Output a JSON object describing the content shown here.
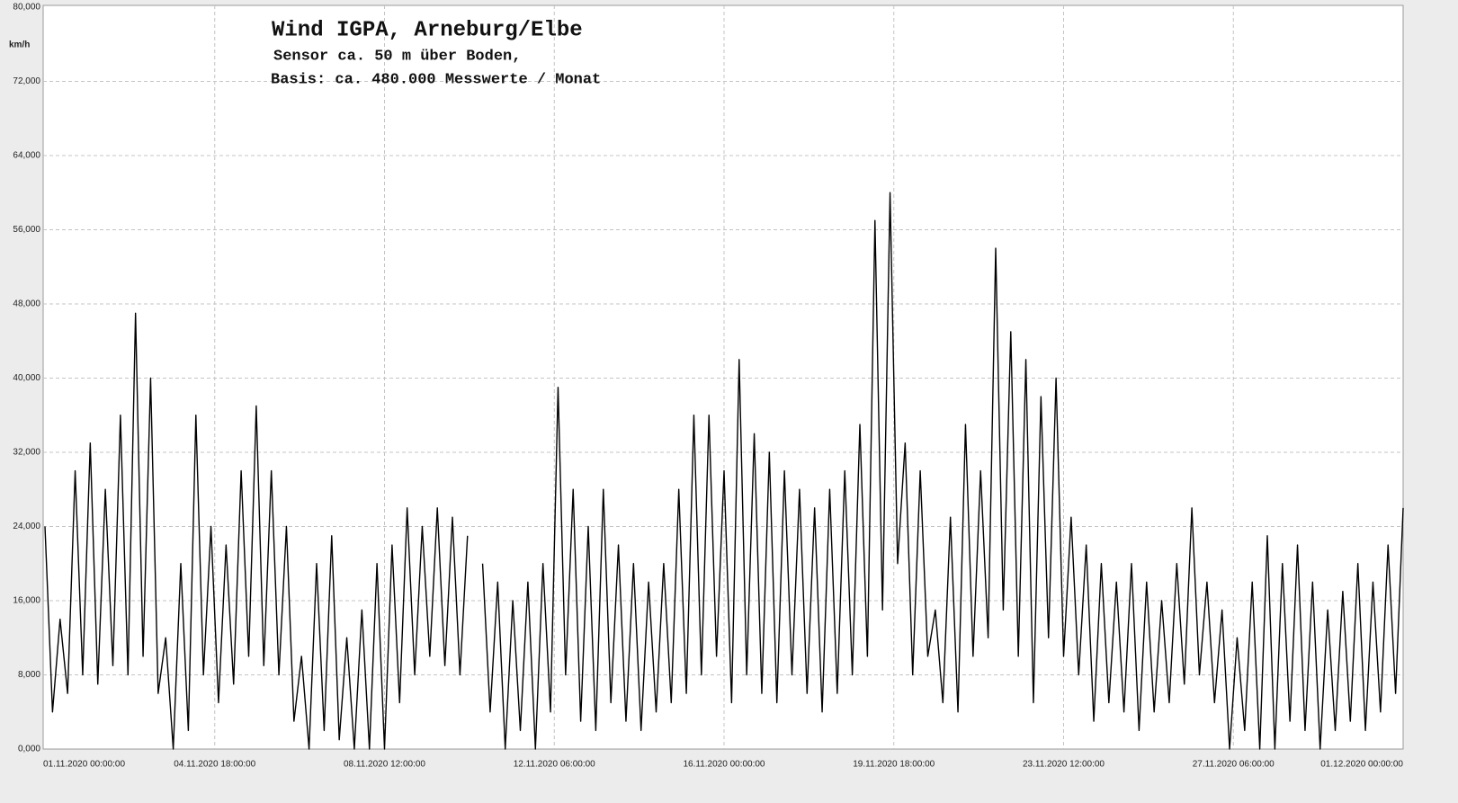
{
  "chart_data": {
    "type": "line",
    "title": "Wind  IGPA, Arneburg/Elbe",
    "subtitle": [
      "Sensor ca. 50 m über Boden,",
      "Basis: ca. 480.000 Messwerte / Monat"
    ],
    "y_label": "km/h",
    "grid": true,
    "ylim": [
      0,
      80
    ],
    "yticks": [
      {
        "value": 0,
        "label": "0,000"
      },
      {
        "value": 8,
        "label": "8,000"
      },
      {
        "value": 16,
        "label": "16,000"
      },
      {
        "value": 24,
        "label": "24,000"
      },
      {
        "value": 32,
        "label": "32,000"
      },
      {
        "value": 40,
        "label": "40,000"
      },
      {
        "value": 48,
        "label": "48,000"
      },
      {
        "value": 56,
        "label": "56,000"
      },
      {
        "value": 64,
        "label": "64,000"
      },
      {
        "value": 72,
        "label": "72,000"
      },
      {
        "value": 80,
        "label": "80,000"
      }
    ],
    "xlim": [
      "01.11.2020 00:00:00",
      "01.12.2020 00:00:00"
    ],
    "xticks": [
      "01.11.2020  00:00:00",
      "04.11.2020  18:00:00",
      "08.11.2020  12:00:00",
      "12.11.2020  06:00:00",
      "16.11.2020  00:00:00",
      "19.11.2020  18:00:00",
      "23.11.2020  12:00:00",
      "27.11.2020  06:00:00",
      "01.12.2020  00:00:00"
    ],
    "series": [
      {
        "color": "#000000",
        "x": [
          "01.11.2020 00:00:00",
          "01.11.2020 04:00:00",
          "01.11.2020 08:00:00",
          "01.11.2020 12:00:00",
          "01.11.2020 16:00:00",
          "01.11.2020 20:00:00",
          "02.11.2020 00:00:00",
          "02.11.2020 04:00:00",
          "02.11.2020 08:00:00",
          "02.11.2020 12:00:00",
          "02.11.2020 16:00:00",
          "02.11.2020 20:00:00",
          "03.11.2020 00:00:00",
          "03.11.2020 04:00:00",
          "03.11.2020 08:00:00",
          "03.11.2020 12:00:00",
          "03.11.2020 16:00:00",
          "03.11.2020 20:00:00",
          "04.11.2020 00:00:00",
          "04.11.2020 04:00:00",
          "04.11.2020 08:00:00",
          "04.11.2020 12:00:00",
          "04.11.2020 16:00:00",
          "04.11.2020 20:00:00",
          "05.11.2020 00:00:00",
          "05.11.2020 04:00:00",
          "05.11.2020 08:00:00",
          "05.11.2020 12:00:00",
          "05.11.2020 16:00:00",
          "05.11.2020 20:00:00",
          "06.11.2020 00:00:00",
          "06.11.2020 04:00:00",
          "06.11.2020 08:00:00",
          "06.11.2020 12:00:00",
          "06.11.2020 16:00:00",
          "06.11.2020 20:00:00",
          "07.11.2020 00:00:00",
          "07.11.2020 04:00:00",
          "07.11.2020 08:00:00",
          "07.11.2020 12:00:00",
          "07.11.2020 16:00:00",
          "07.11.2020 20:00:00",
          "08.11.2020 00:00:00",
          "08.11.2020 04:00:00",
          "08.11.2020 08:00:00",
          "08.11.2020 12:00:00",
          "08.11.2020 16:00:00",
          "08.11.2020 20:00:00",
          "09.11.2020 00:00:00",
          "09.11.2020 04:00:00",
          "09.11.2020 08:00:00",
          "09.11.2020 12:00:00",
          "09.11.2020 16:00:00",
          "09.11.2020 20:00:00",
          "10.11.2020 00:00:00",
          "10.11.2020 04:00:00",
          "10.11.2020 08:00:00",
          "10.11.2020 12:00:00",
          "10.11.2020 16:00:00",
          "10.11.2020 20:00:00",
          "11.11.2020 00:00:00",
          "11.11.2020 04:00:00",
          "11.11.2020 08:00:00",
          "11.11.2020 12:00:00",
          "11.11.2020 16:00:00",
          "11.11.2020 20:00:00",
          "12.11.2020 00:00:00",
          "12.11.2020 04:00:00",
          "12.11.2020 08:00:00",
          "12.11.2020 12:00:00",
          "12.11.2020 16:00:00",
          "12.11.2020 20:00:00",
          "13.11.2020 00:00:00",
          "13.11.2020 04:00:00",
          "13.11.2020 08:00:00",
          "13.11.2020 12:00:00",
          "13.11.2020 16:00:00",
          "13.11.2020 20:00:00",
          "14.11.2020 00:00:00",
          "14.11.2020 04:00:00",
          "14.11.2020 08:00:00",
          "14.11.2020 12:00:00",
          "14.11.2020 16:00:00",
          "14.11.2020 20:00:00",
          "15.11.2020 00:00:00",
          "15.11.2020 04:00:00",
          "15.11.2020 08:00:00",
          "15.11.2020 12:00:00",
          "15.11.2020 16:00:00",
          "15.11.2020 20:00:00",
          "16.11.2020 00:00:00",
          "16.11.2020 04:00:00",
          "16.11.2020 08:00:00",
          "16.11.2020 12:00:00",
          "16.11.2020 16:00:00",
          "16.11.2020 20:00:00",
          "17.11.2020 00:00:00",
          "17.11.2020 04:00:00",
          "17.11.2020 08:00:00",
          "17.11.2020 12:00:00",
          "17.11.2020 16:00:00",
          "17.11.2020 20:00:00",
          "18.11.2020 00:00:00",
          "18.11.2020 04:00:00",
          "18.11.2020 08:00:00",
          "18.11.2020 12:00:00",
          "18.11.2020 16:00:00",
          "18.11.2020 20:00:00",
          "19.11.2020 00:00:00",
          "19.11.2020 04:00:00",
          "19.11.2020 08:00:00",
          "19.11.2020 12:00:00",
          "19.11.2020 16:00:00",
          "19.11.2020 20:00:00",
          "20.11.2020 00:00:00",
          "20.11.2020 04:00:00",
          "20.11.2020 08:00:00",
          "20.11.2020 12:00:00",
          "20.11.2020 16:00:00",
          "20.11.2020 20:00:00",
          "21.11.2020 00:00:00",
          "21.11.2020 04:00:00",
          "21.11.2020 08:00:00",
          "21.11.2020 12:00:00",
          "21.11.2020 16:00:00",
          "21.11.2020 20:00:00",
          "22.11.2020 00:00:00",
          "22.11.2020 04:00:00",
          "22.11.2020 08:00:00",
          "22.11.2020 12:00:00",
          "22.11.2020 16:00:00",
          "22.11.2020 20:00:00",
          "23.11.2020 00:00:00",
          "23.11.2020 04:00:00",
          "23.11.2020 08:00:00",
          "23.11.2020 12:00:00",
          "23.11.2020 16:00:00",
          "23.11.2020 20:00:00",
          "24.11.2020 00:00:00",
          "24.11.2020 04:00:00",
          "24.11.2020 08:00:00",
          "24.11.2020 12:00:00",
          "24.11.2020 16:00:00",
          "24.11.2020 20:00:00",
          "25.11.2020 00:00:00",
          "25.11.2020 04:00:00",
          "25.11.2020 08:00:00",
          "25.11.2020 12:00:00",
          "25.11.2020 16:00:00",
          "25.11.2020 20:00:00",
          "26.11.2020 00:00:00",
          "26.11.2020 04:00:00",
          "26.11.2020 08:00:00",
          "26.11.2020 12:00:00",
          "26.11.2020 16:00:00",
          "26.11.2020 20:00:00",
          "27.11.2020 00:00:00",
          "27.11.2020 04:00:00",
          "27.11.2020 08:00:00",
          "27.11.2020 12:00:00",
          "27.11.2020 16:00:00",
          "27.11.2020 20:00:00",
          "28.11.2020 00:00:00",
          "28.11.2020 04:00:00",
          "28.11.2020 08:00:00",
          "28.11.2020 12:00:00",
          "28.11.2020 16:00:00",
          "28.11.2020 20:00:00",
          "29.11.2020 00:00:00",
          "29.11.2020 04:00:00",
          "29.11.2020 08:00:00",
          "29.11.2020 12:00:00",
          "29.11.2020 16:00:00",
          "29.11.2020 20:00:00",
          "30.11.2020 00:00:00",
          "30.11.2020 04:00:00",
          "30.11.2020 08:00:00",
          "30.11.2020 12:00:00",
          "30.11.2020 16:00:00",
          "30.11.2020 20:00:00",
          "01.12.2020 00:00:00"
        ],
        "values": [
          24,
          4,
          14,
          6,
          30,
          8,
          33,
          7,
          28,
          9,
          36,
          8,
          47,
          10,
          40,
          6,
          12,
          0,
          20,
          2,
          36,
          8,
          24,
          5,
          22,
          7,
          30,
          10,
          37,
          9,
          30,
          8,
          24,
          3,
          10,
          0,
          20,
          2,
          23,
          1,
          12,
          0,
          15,
          0,
          20,
          0,
          22,
          5,
          26,
          8,
          24,
          10,
          26,
          9,
          25,
          8,
          23,
          null,
          20,
          4,
          18,
          0,
          16,
          2,
          18,
          0,
          20,
          4,
          39,
          8,
          28,
          3,
          24,
          2,
          28,
          5,
          22,
          3,
          20,
          2,
          18,
          4,
          20,
          5,
          28,
          6,
          36,
          8,
          36,
          10,
          30,
          5,
          42,
          8,
          34,
          6,
          32,
          5,
          30,
          8,
          28,
          6,
          26,
          4,
          28,
          6,
          30,
          8,
          35,
          10,
          57,
          15,
          60,
          20,
          33,
          8,
          30,
          10,
          15,
          5,
          25,
          4,
          35,
          10,
          30,
          12,
          54,
          15,
          45,
          10,
          42,
          5,
          38,
          12,
          40,
          10,
          25,
          8,
          22,
          3,
          20,
          5,
          18,
          4,
          20,
          2,
          18,
          4,
          16,
          5,
          20,
          7,
          26,
          8,
          18,
          5,
          15,
          0,
          12,
          2,
          18,
          0,
          23,
          0,
          20,
          3,
          22,
          2,
          18,
          0,
          15,
          2,
          17,
          3,
          20,
          2,
          18,
          4,
          22,
          6,
          26
        ]
      }
    ]
  }
}
